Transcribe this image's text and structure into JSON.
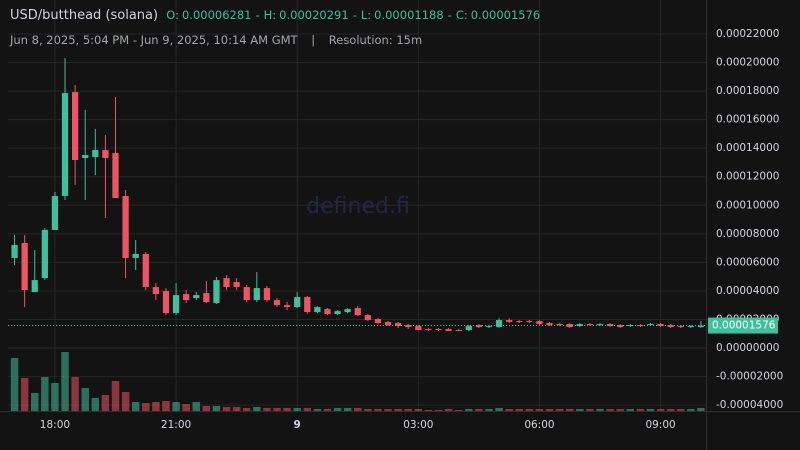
{
  "chart_data": {
    "type": "candlestick",
    "title": "USD/butthead (solana)",
    "summary": [
      {
        "label": "O:",
        "value": 6.281e-05
      },
      {
        "label": "H:",
        "value": 0.00020291
      },
      {
        "label": "L:",
        "value": 1.188e-05
      },
      {
        "label": "C:",
        "value": 1.576e-05
      }
    ],
    "separator": "-",
    "range": "Jun 8, 2025, 5:04 PM - Jun 9, 2025, 10:14 AM GMT",
    "divider": "|",
    "resolution": "Resolution: 15m",
    "watermark": "defined.fi",
    "up_color": "#3fbf9b",
    "down_color": "#ef5462",
    "xlim": [
      -0.65,
      68.5
    ],
    "xticks": [
      {
        "value": 4,
        "label": "18:00"
      },
      {
        "value": 16,
        "label": "21:00"
      },
      {
        "value": 28,
        "label": "9"
      },
      {
        "value": 40,
        "label": "03:00"
      },
      {
        "value": 52,
        "label": "06:00"
      },
      {
        "value": 64,
        "label": "09:00"
      }
    ],
    "ylim": [
      -4.41e-05,
      0.0002438
    ],
    "yticks": [
      {
        "value": 0.00022,
        "label": "0.00022000"
      },
      {
        "value": 0.0002,
        "label": "0.00020000"
      },
      {
        "value": 0.00018,
        "label": "0.00018000"
      },
      {
        "value": 0.00016,
        "label": "0.00016000"
      },
      {
        "value": 0.00014,
        "label": "0.00014000"
      },
      {
        "value": 0.00012,
        "label": "0.00012000"
      },
      {
        "value": 0.0001,
        "label": "0.00010000"
      },
      {
        "value": 8e-05,
        "label": "0.00008000"
      },
      {
        "value": 6e-05,
        "label": "0.00006000"
      },
      {
        "value": 4e-05,
        "label": "0.00004000"
      },
      {
        "value": 2e-05,
        "label": "0.00002000"
      },
      {
        "value": 0,
        "label": "0.00000000"
      },
      {
        "value": -2e-05,
        "label": "-0.00002000"
      },
      {
        "value": -4e-05,
        "label": "-0.00004000"
      }
    ],
    "grid": true,
    "open": [
      6.31e-05,
      7.36e-05,
      3.92e-05,
      4.9e-05,
      8.27e-05,
      0.0001065,
      0.0001793,
      0.0001331,
      0.0001338,
      0.0001387,
      0.0001366,
      0.0001065,
      6.31e-05,
      6.59e-05,
      4.27e-05,
      3.99e-05,
      2.45e-05,
      3.78e-05,
      3.5e-05,
      3.85e-05,
      3.15e-05,
      4.9e-05,
      4.62e-05,
      4.27e-05,
      3.36e-05,
      4.2e-05,
      3.36e-05,
      3.01e-05,
      2.87e-05,
      3.57e-05,
      2.52e-05,
      2.73e-05,
      2.38e-05,
      2.52e-05,
      2.8e-05,
      2.31e-05,
      2.03e-05,
      1.82e-05,
      1.75e-05,
      1.61e-05,
      1.54e-05,
      1.33e-05,
      1.33e-05,
      1.33e-05,
      1.26e-05,
      1.26e-05,
      1.61e-05,
      1.47e-05,
      1.47e-05,
      1.96e-05,
      1.89e-05,
      1.89e-05,
      1.89e-05,
      1.75e-05,
      1.68e-05,
      1.68e-05,
      1.54e-05,
      1.68e-05,
      1.61e-05,
      1.68e-05,
      1.61e-05,
      1.54e-05,
      1.61e-05,
      1.61e-05,
      1.68e-05,
      1.61e-05,
      1.54e-05,
      1.47e-05,
      1.47e-05
    ],
    "high": [
      7.92e-05,
      7.92e-05,
      6.87e-05,
      8.41e-05,
      0.0001093,
      0.0002031,
      0.0001842,
      0.0001667,
      0.0001534,
      0.0001492,
      0.0001758,
      0.0001107,
      7.57e-05,
      6.73e-05,
      4.55e-05,
      4.2e-05,
      4.55e-05,
      4.06e-05,
      3.92e-05,
      4.69e-05,
      4.97e-05,
      5.11e-05,
      4.9e-05,
      4.41e-05,
      5.32e-05,
      4.34e-05,
      3.5e-05,
      3.22e-05,
      3.92e-05,
      3.64e-05,
      2.94e-05,
      2.8e-05,
      2.66e-05,
      2.8e-05,
      2.94e-05,
      2.38e-05,
      2.1e-05,
      1.89e-05,
      1.82e-05,
      1.68e-05,
      1.61e-05,
      1.4e-05,
      1.4e-05,
      1.4e-05,
      1.33e-05,
      1.61e-05,
      1.68e-05,
      1.61e-05,
      2.1e-05,
      2.1e-05,
      1.96e-05,
      1.96e-05,
      1.96e-05,
      1.82e-05,
      1.75e-05,
      1.75e-05,
      1.75e-05,
      1.75e-05,
      1.75e-05,
      1.75e-05,
      1.68e-05,
      1.68e-05,
      1.68e-05,
      1.75e-05,
      1.75e-05,
      1.68e-05,
      1.61e-05,
      1.61e-05,
      1.89e-05
    ],
    "low": [
      5.81e-05,
      2.87e-05,
      3.92e-05,
      4.76e-05,
      8.27e-05,
      0.0001037,
      0.0001142,
      0.0001037,
      0.0001212,
      9.11e-05,
      0.0001051,
      4.9e-05,
      5.46e-05,
      4.06e-05,
      3.36e-05,
      2.31e-05,
      2.31e-05,
      3.15e-05,
      3.36e-05,
      3.15e-05,
      3.08e-05,
      4.06e-05,
      4.06e-05,
      3.22e-05,
      3.22e-05,
      3.22e-05,
      2.87e-05,
      2.66e-05,
      2.8e-05,
      2.38e-05,
      2.45e-05,
      2.31e-05,
      2.31e-05,
      2.45e-05,
      2.24e-05,
      1.89e-05,
      1.68e-05,
      1.54e-05,
      1.4e-05,
      1.33e-05,
      1.26e-05,
      1.19e-05,
      1.19e-05,
      1.188e-05,
      1.19e-05,
      1.19e-05,
      1.4e-05,
      1.4e-05,
      1.4e-05,
      1.75e-05,
      1.75e-05,
      1.75e-05,
      1.61e-05,
      1.54e-05,
      1.54e-05,
      1.4e-05,
      1.47e-05,
      1.54e-05,
      1.54e-05,
      1.47e-05,
      1.4e-05,
      1.47e-05,
      1.47e-05,
      1.54e-05,
      1.47e-05,
      1.4e-05,
      1.4e-05,
      1.4e-05,
      1.4e-05
    ],
    "close": [
      7.22e-05,
      4.06e-05,
      4.76e-05,
      8.27e-05,
      0.0001065,
      0.0001786,
      0.0001317,
      0.0001352,
      0.0001387,
      0.0001331,
      0.0001051,
      6.31e-05,
      6.59e-05,
      4.27e-05,
      3.78e-05,
      2.45e-05,
      3.71e-05,
      3.36e-05,
      3.71e-05,
      3.22e-05,
      4.76e-05,
      4.27e-05,
      4.27e-05,
      3.36e-05,
      4.2e-05,
      3.36e-05,
      3.01e-05,
      2.87e-05,
      3.57e-05,
      2.52e-05,
      2.87e-05,
      2.38e-05,
      2.59e-05,
      2.73e-05,
      2.31e-05,
      1.96e-05,
      1.75e-05,
      1.61e-05,
      1.54e-05,
      1.47e-05,
      1.26e-05,
      1.26e-05,
      1.26e-05,
      1.19e-05,
      1.19e-05,
      1.54e-05,
      1.47e-05,
      1.54e-05,
      1.96e-05,
      1.82e-05,
      1.82e-05,
      1.82e-05,
      1.68e-05,
      1.61e-05,
      1.61e-05,
      1.47e-05,
      1.68e-05,
      1.61e-05,
      1.68e-05,
      1.54e-05,
      1.47e-05,
      1.61e-05,
      1.54e-05,
      1.68e-05,
      1.54e-05,
      1.47e-05,
      1.47e-05,
      1.54e-05,
      1.576e-05
    ],
    "volume": [
      53,
      33,
      18,
      34,
      28,
      59,
      34,
      23,
      13,
      16,
      30,
      19,
      9,
      8,
      9,
      10,
      9,
      7,
      9,
      5,
      5,
      4,
      4,
      3,
      4,
      3,
      3,
      3,
      3,
      3,
      2,
      2,
      3,
      3,
      3,
      2,
      2,
      2,
      2,
      2,
      2,
      1,
      1,
      2,
      1,
      2,
      2,
      2,
      3,
      2,
      2,
      2,
      2,
      2,
      2,
      2,
      2,
      2,
      2,
      2,
      2,
      2,
      2,
      2,
      2,
      2,
      2,
      2,
      3
    ],
    "vlim": [
      0,
      60
    ]
  }
}
